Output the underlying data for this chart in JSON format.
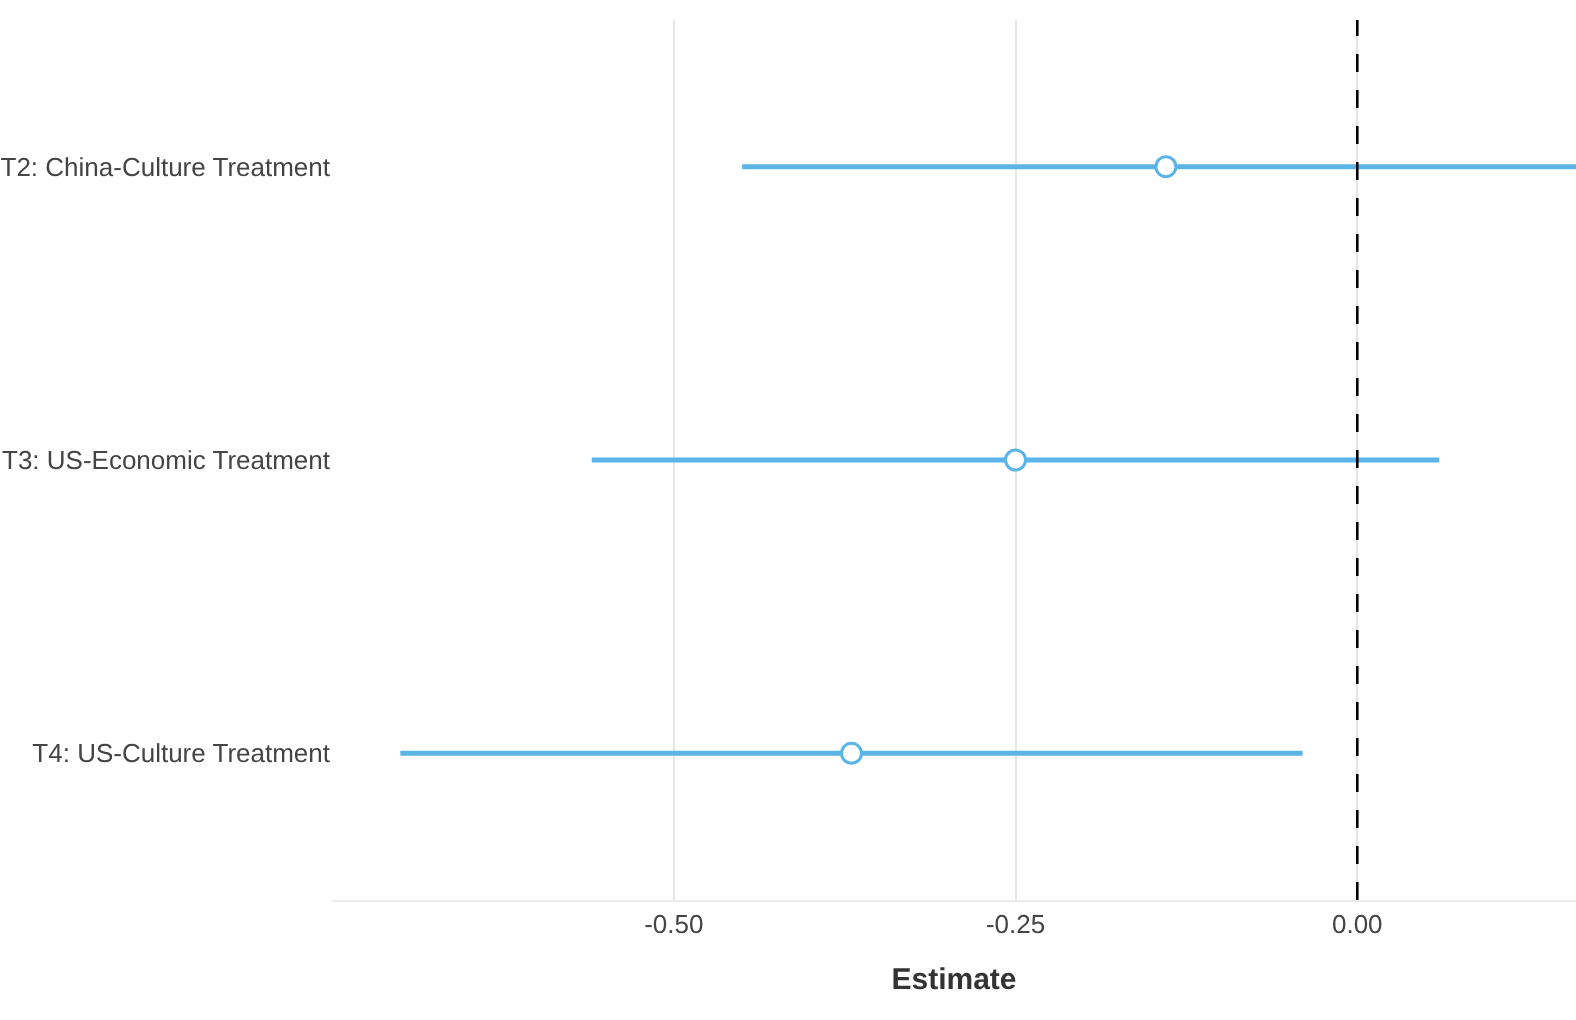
{
  "chart_data": {
    "type": "scatter",
    "orientation": "horizontal",
    "xlabel": "Estimate",
    "categories": [
      "T2: China-Culture Treatment",
      "T3: US-Economic Treatment",
      "T4: US-Culture Treatment"
    ],
    "series": [
      {
        "color": "#5ab4e8",
        "values": [
          -0.14,
          -0.25,
          -0.37
        ],
        "errors": [
          [
            -0.45,
            0.16
          ],
          [
            -0.56,
            0.06
          ],
          [
            -0.7,
            -0.04
          ]
        ]
      }
    ],
    "xlim": [
      -0.75,
      0.16
    ],
    "xticks": [
      {
        "value": -0.5,
        "label": "-0.50"
      },
      {
        "value": -0.25,
        "label": "-0.25"
      },
      {
        "value": 0,
        "label": "0.00"
      }
    ],
    "grid": "x",
    "marker": "circle",
    "ref_lines": [
      {
        "axis": "x",
        "value": 0,
        "color": "#000000",
        "line_style": "dashed"
      }
    ]
  }
}
